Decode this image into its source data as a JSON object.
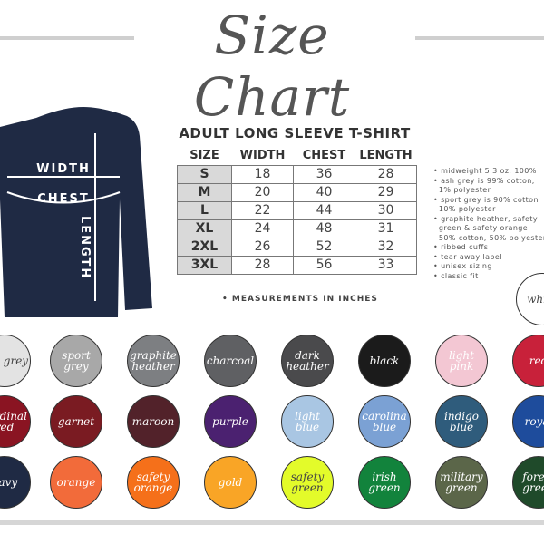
{
  "title": "Size Chart",
  "shirt": {
    "color": "#1f2a44",
    "labels": {
      "width": "WIDTH",
      "chest": "CHEST",
      "length": "LENGTH"
    }
  },
  "table": {
    "title": "ADULT LONG SLEEVE T-SHIRT",
    "headers": [
      "SIZE",
      "WIDTH",
      "CHEST",
      "LENGTH"
    ],
    "rows": [
      [
        "S",
        "18",
        "36",
        "28"
      ],
      [
        "M",
        "20",
        "40",
        "29"
      ],
      [
        "L",
        "22",
        "44",
        "30"
      ],
      [
        "XL",
        "24",
        "48",
        "31"
      ],
      [
        "2XL",
        "26",
        "52",
        "32"
      ],
      [
        "3XL",
        "28",
        "56",
        "33"
      ]
    ],
    "note": "• MEASUREMENTS IN INCHES"
  },
  "features": [
    "midweight 5.3 oz. 100%",
    "ash grey is 99% cotton,",
    "1% polyester",
    "sport grey is 90% cotton",
    "10% polyester",
    "graphite heather, safety",
    "green & safety orange",
    "50% cotton, 50% polyester",
    "ribbed cuffs",
    "tear away label",
    "unisex sizing",
    "classic fit"
  ],
  "colors": [
    {
      "name": "white",
      "hex": "#ffffff",
      "text": "#444"
    },
    {
      "name": "ash grey",
      "hex": "#e3e3e3",
      "text": "#444"
    },
    {
      "name": "sport grey",
      "hex": "#a8a8a8",
      "text": "#fff"
    },
    {
      "name": "graphite heather",
      "hex": "#7d7f82",
      "text": "#fff"
    },
    {
      "name": "charcoal",
      "hex": "#5f6063",
      "text": "#fff"
    },
    {
      "name": "dark heather",
      "hex": "#4a4a4c",
      "text": "#fff"
    },
    {
      "name": "black",
      "hex": "#1b1b1b",
      "text": "#fff"
    },
    {
      "name": "light pink",
      "hex": "#f3c7d3",
      "text": "#fff"
    },
    {
      "name": "red",
      "hex": "#c8213a",
      "text": "#fff"
    },
    {
      "name": "cardinal red",
      "hex": "#8a1422",
      "text": "#fff"
    },
    {
      "name": "garnet",
      "hex": "#7a1b22",
      "text": "#fff"
    },
    {
      "name": "maroon",
      "hex": "#52222a",
      "text": "#fff"
    },
    {
      "name": "purple",
      "hex": "#4b2170",
      "text": "#fff"
    },
    {
      "name": "light blue",
      "hex": "#a9c6e3",
      "text": "#fff"
    },
    {
      "name": "carolina blue",
      "hex": "#7ba1d4",
      "text": "#fff"
    },
    {
      "name": "indigo blue",
      "hex": "#2f5c7c",
      "text": "#fff"
    },
    {
      "name": "royal",
      "hex": "#1e4c9c",
      "text": "#fff"
    },
    {
      "name": "navy",
      "hex": "#1f2a44",
      "text": "#fff"
    },
    {
      "name": "orange",
      "hex": "#f26b3a",
      "text": "#fff"
    },
    {
      "name": "safety orange",
      "hex": "#f5701a",
      "text": "#fff"
    },
    {
      "name": "gold",
      "hex": "#f9a526",
      "text": "#fff"
    },
    {
      "name": "safety green",
      "hex": "#e3fb2a",
      "text": "#444"
    },
    {
      "name": "irish green",
      "hex": "#12833c",
      "text": "#fff"
    },
    {
      "name": "military green",
      "hex": "#5b6649",
      "text": "#fff"
    },
    {
      "name": "forest green",
      "hex": "#1f4a2a",
      "text": "#fff"
    }
  ]
}
